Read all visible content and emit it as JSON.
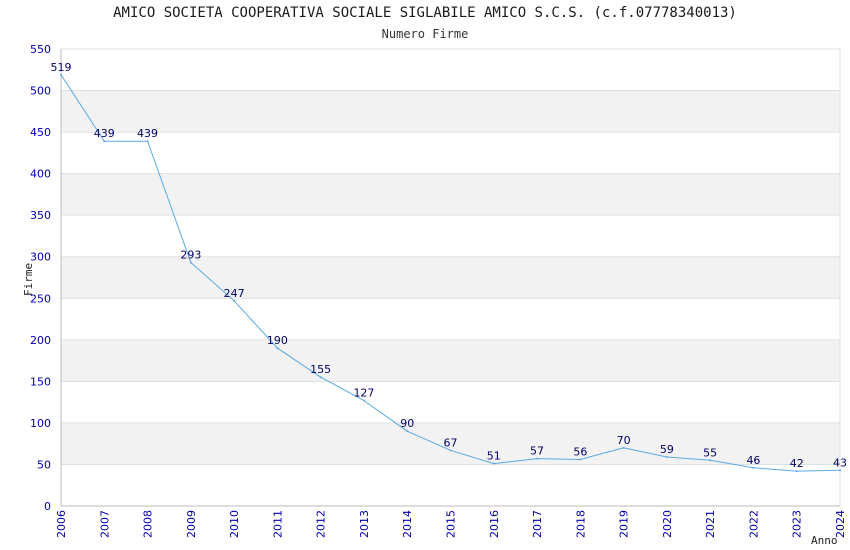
{
  "chart_data": {
    "type": "line",
    "title": "AMICO SOCIETA COOPERATIVA SOCIALE SIGLABILE AMICO S.C.S. (c.f.07778340013)",
    "subtitle": "Numero Firme",
    "xlabel": "Anno",
    "ylabel": "Firme",
    "categories": [
      "2006",
      "2007",
      "2008",
      "2009",
      "2010",
      "2011",
      "2012",
      "2013",
      "2014",
      "2015",
      "2016",
      "2017",
      "2018",
      "2019",
      "2020",
      "2021",
      "2022",
      "2023",
      "2024"
    ],
    "series": [
      {
        "name": "Numero Firme",
        "values": [
          519,
          439,
          439,
          293,
          247,
          190,
          155,
          127,
          90,
          67,
          51,
          57,
          56,
          70,
          59,
          55,
          46,
          42,
          43
        ]
      }
    ],
    "ylim": [
      0,
      550
    ],
    "yticks": [
      0,
      50,
      100,
      150,
      200,
      250,
      300,
      350,
      400,
      450,
      500,
      550
    ],
    "grid": true,
    "legend": "none"
  },
  "colors": {
    "line": "#5aa9e6",
    "tick_text": "#0000aa",
    "data_label": "#000066",
    "band": "#f2f2f2",
    "grid": "#e0e0e0",
    "axis": "#bbbbbb"
  }
}
